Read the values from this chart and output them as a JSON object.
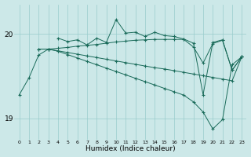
{
  "title": "",
  "xlabel": "Humidex (Indice chaleur)",
  "background_color": "#cce8e8",
  "grid_color": "#99cccc",
  "line_color": "#1a6b5a",
  "ylim": [
    18.75,
    20.35
  ],
  "yticks": [
    19,
    20
  ],
  "xlim": [
    -0.5,
    23.5
  ],
  "xticks": [
    0,
    1,
    2,
    3,
    4,
    5,
    6,
    7,
    8,
    9,
    10,
    11,
    12,
    13,
    14,
    15,
    16,
    17,
    18,
    19,
    20,
    21,
    22,
    23
  ],
  "y_zigzag": [
    null,
    null,
    null,
    null,
    19.95,
    19.91,
    19.93,
    19.87,
    19.95,
    19.9,
    20.17,
    20.01,
    20.02,
    19.97,
    20.02,
    19.98,
    19.97,
    19.94,
    19.89,
    19.28,
    19.9,
    19.93,
    19.57,
    19.73
  ],
  "y_upper": [
    null,
    null,
    19.82,
    19.82,
    19.83,
    19.84,
    19.855,
    19.865,
    19.875,
    19.89,
    19.905,
    19.915,
    19.925,
    19.93,
    19.935,
    19.935,
    19.935,
    19.935,
    19.845,
    19.655,
    19.885,
    19.925,
    19.57,
    19.73
  ],
  "y_mid": [
    null,
    null,
    19.82,
    19.82,
    19.8,
    19.78,
    19.76,
    19.74,
    19.72,
    19.7,
    19.68,
    19.66,
    19.64,
    19.62,
    19.6,
    19.585,
    19.565,
    19.545,
    19.525,
    19.505,
    19.485,
    19.465,
    19.445,
    19.73
  ],
  "y_lower": [
    19.28,
    19.48,
    19.75,
    19.82,
    19.795,
    19.755,
    19.715,
    19.675,
    19.635,
    19.595,
    19.555,
    19.515,
    19.475,
    19.435,
    19.395,
    19.355,
    19.315,
    19.275,
    19.195,
    19.075,
    18.875,
    18.985,
    19.635,
    19.73
  ]
}
